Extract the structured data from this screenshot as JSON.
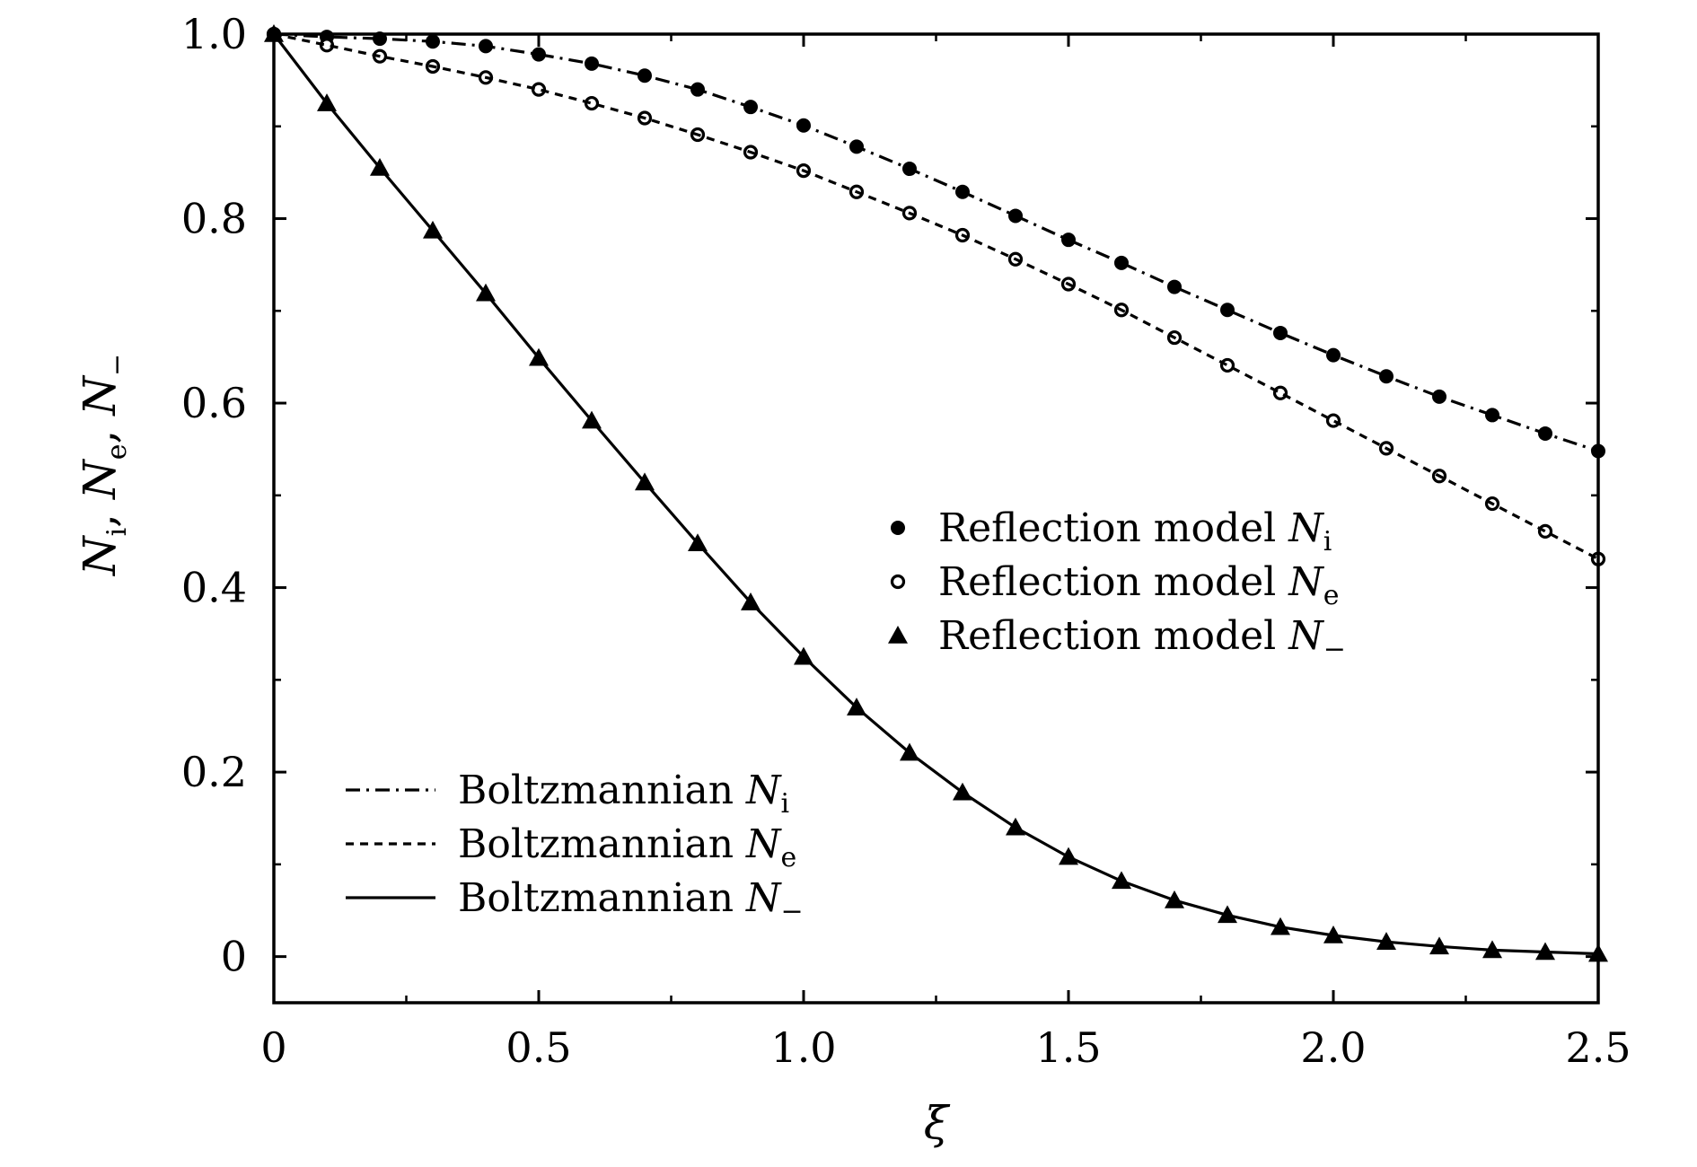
{
  "chart_data": {
    "type": "line",
    "xlabel": "ξ",
    "ylabel_parts": [
      {
        "sym": "N",
        "sub": "i",
        "sep": ", "
      },
      {
        "sym": "N",
        "sub": "e",
        "sep": ", "
      },
      {
        "sym": "N",
        "sub": "−",
        "sep": ""
      }
    ],
    "xlim": [
      0,
      2.5
    ],
    "ylim": [
      -0.05,
      1.0
    ],
    "x_ticks": [
      0,
      0.5,
      1.0,
      1.5,
      2.0,
      2.5
    ],
    "x_tick_labels": [
      "0",
      "0.5",
      "1.0",
      "1.5",
      "2.0",
      "2.5"
    ],
    "x_minor_ticks": [
      0.25,
      0.75,
      1.25,
      1.75,
      2.25
    ],
    "y_ticks": [
      0,
      0.2,
      0.4,
      0.6,
      0.8,
      1.0
    ],
    "y_tick_labels": [
      "0",
      "0.2",
      "0.4",
      "0.6",
      "0.8",
      "1.0"
    ],
    "y_minor_ticks": [
      0.1,
      0.3,
      0.5,
      0.7,
      0.9
    ],
    "grid": false,
    "x": [
      0,
      0.1,
      0.2,
      0.3,
      0.4,
      0.5,
      0.6,
      0.7,
      0.8,
      0.9,
      1.0,
      1.1,
      1.2,
      1.3,
      1.4,
      1.5,
      1.6,
      1.7,
      1.8,
      1.9,
      2.0,
      2.1,
      2.2,
      2.3,
      2.4,
      2.5
    ],
    "series": [
      {
        "name": "Reflection model N_i",
        "legend_prefix": "Reflection model ",
        "legend_sym": "N",
        "legend_sub": "i",
        "kind": "markers",
        "marker": "filled-circle",
        "color": "#000000",
        "values": [
          1.0,
          0.997,
          0.995,
          0.992,
          0.987,
          0.978,
          0.968,
          0.955,
          0.94,
          0.921,
          0.901,
          0.878,
          0.854,
          0.829,
          0.803,
          0.777,
          0.752,
          0.726,
          0.701,
          0.676,
          0.652,
          0.629,
          0.607,
          0.587,
          0.567,
          0.548
        ]
      },
      {
        "name": "Reflection model N_e",
        "legend_prefix": "Reflection model ",
        "legend_sym": "N",
        "legend_sub": "e",
        "kind": "markers",
        "marker": "open-circle",
        "color": "#000000",
        "values": [
          1.0,
          0.988,
          0.976,
          0.965,
          0.953,
          0.94,
          0.925,
          0.909,
          0.891,
          0.872,
          0.852,
          0.829,
          0.806,
          0.782,
          0.756,
          0.729,
          0.701,
          0.671,
          0.641,
          0.611,
          0.581,
          0.551,
          0.521,
          0.491,
          0.461,
          0.431
        ]
      },
      {
        "name": "Reflection model N_-",
        "legend_prefix": "Reflection model ",
        "legend_sym": "N",
        "legend_sub": "−",
        "kind": "markers",
        "marker": "filled-triangle",
        "color": "#000000",
        "values": [
          1.0,
          0.925,
          0.855,
          0.787,
          0.719,
          0.649,
          0.581,
          0.514,
          0.448,
          0.384,
          0.325,
          0.27,
          0.221,
          0.178,
          0.14,
          0.108,
          0.082,
          0.061,
          0.045,
          0.032,
          0.023,
          0.016,
          0.011,
          0.007,
          0.005,
          0.003
        ]
      },
      {
        "name": "Boltzmannian N_i",
        "legend_prefix": "Boltzmannian ",
        "legend_sym": "N",
        "legend_sub": "i",
        "kind": "line",
        "dash": "dash-dot",
        "color": "#000000",
        "values": [
          1.0,
          0.997,
          0.995,
          0.992,
          0.987,
          0.978,
          0.968,
          0.955,
          0.94,
          0.921,
          0.901,
          0.878,
          0.854,
          0.829,
          0.803,
          0.777,
          0.752,
          0.726,
          0.701,
          0.676,
          0.652,
          0.629,
          0.607,
          0.587,
          0.567,
          0.548
        ]
      },
      {
        "name": "Boltzmannian N_e",
        "legend_prefix": "Boltzmannian ",
        "legend_sym": "N",
        "legend_sub": "e",
        "kind": "line",
        "dash": "dotted",
        "color": "#000000",
        "values": [
          1.0,
          0.988,
          0.976,
          0.965,
          0.953,
          0.94,
          0.925,
          0.909,
          0.891,
          0.872,
          0.852,
          0.829,
          0.806,
          0.782,
          0.756,
          0.729,
          0.701,
          0.671,
          0.641,
          0.611,
          0.581,
          0.551,
          0.521,
          0.491,
          0.461,
          0.431
        ]
      },
      {
        "name": "Boltzmannian N_-",
        "legend_prefix": "Boltzmannian ",
        "legend_sym": "N",
        "legend_sub": "−",
        "kind": "line",
        "dash": "solid",
        "color": "#000000",
        "values": [
          1.0,
          0.925,
          0.855,
          0.787,
          0.719,
          0.649,
          0.581,
          0.514,
          0.448,
          0.384,
          0.325,
          0.27,
          0.221,
          0.178,
          0.14,
          0.108,
          0.082,
          0.061,
          0.045,
          0.032,
          0.023,
          0.016,
          0.011,
          0.007,
          0.005,
          0.003
        ]
      }
    ],
    "legends": [
      {
        "placement": "center-right",
        "items": [
          0,
          1,
          2
        ]
      },
      {
        "placement": "bottom-left",
        "items": [
          3,
          4,
          5
        ]
      }
    ]
  }
}
